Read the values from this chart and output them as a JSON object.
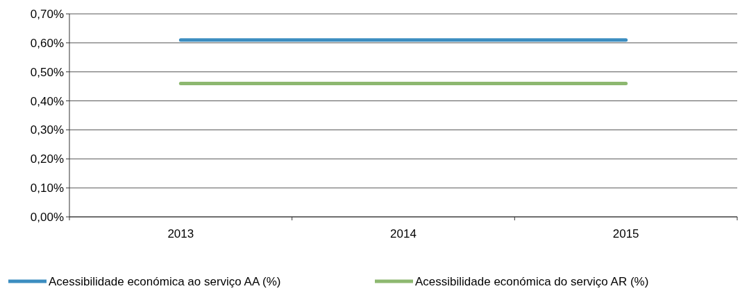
{
  "chart_data": {
    "type": "line",
    "categories": [
      "2013",
      "2014",
      "2015"
    ],
    "series": [
      {
        "name": "Acessibilidade económica ao serviço AA (%)",
        "color": "#3c8dc0",
        "values": [
          0.61,
          0.61,
          0.61
        ]
      },
      {
        "name": "Acessibilidade económica do serviço AR (%)",
        "color": "#8db870",
        "values": [
          0.46,
          0.46,
          0.46
        ]
      }
    ],
    "ylim": [
      0,
      0.7
    ],
    "yticks": [
      {
        "value": 0,
        "label": "0,00%"
      },
      {
        "value": 0.1,
        "label": "0,10%"
      },
      {
        "value": 0.2,
        "label": "0,20%"
      },
      {
        "value": 0.3,
        "label": "0,30%"
      },
      {
        "value": 0.4,
        "label": "0,40%"
      },
      {
        "value": 0.5,
        "label": "0,50%"
      },
      {
        "value": 0.6,
        "label": "0,60%"
      },
      {
        "value": 0.7,
        "label": "0,70%"
      }
    ],
    "grid": "y",
    "legend": "bottom",
    "marker": "none",
    "line_style": "solid"
  }
}
